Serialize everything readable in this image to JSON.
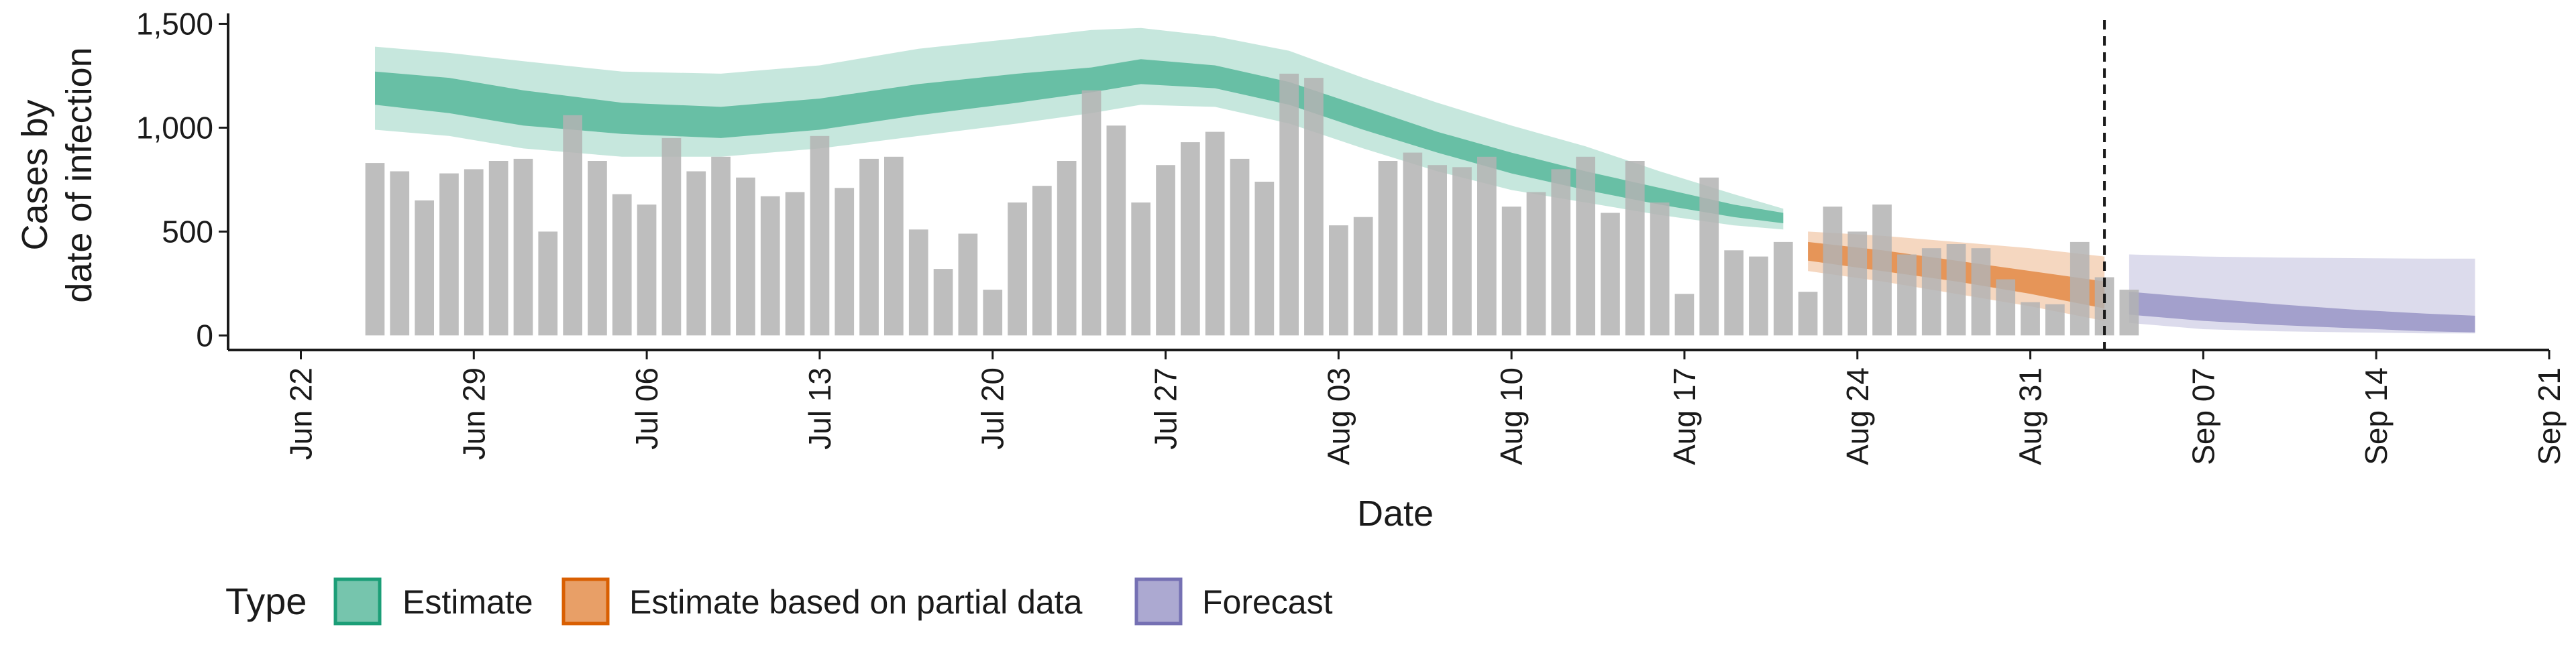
{
  "chart_data": {
    "type": "bar",
    "xlabel": "Date",
    "ylabel_lines": [
      "Cases by",
      "date of infection"
    ],
    "y_ticks": [
      0,
      500,
      1000,
      1500
    ],
    "y_tick_labels": [
      "0",
      "500",
      "1,000",
      "1,500"
    ],
    "ylim": [
      -70,
      1550
    ],
    "x_range": [
      "2020-06-19",
      "2020-09-21"
    ],
    "x_ticks": [
      "2020-06-22",
      "2020-06-29",
      "2020-07-06",
      "2020-07-13",
      "2020-07-20",
      "2020-07-27",
      "2020-08-03",
      "2020-08-10",
      "2020-08-17",
      "2020-08-24",
      "2020-08-31",
      "2020-09-07",
      "2020-09-14",
      "2020-09-21"
    ],
    "x_tick_labels": [
      "Jun 22",
      "Jun 29",
      "Jul 06",
      "Jul 13",
      "Jul 20",
      "Jul 27",
      "Aug 03",
      "Aug 10",
      "Aug 17",
      "Aug 24",
      "Aug 31",
      "Sep 07",
      "Sep 14",
      "Sep 21"
    ],
    "grid": false,
    "vline_date": "2020-09-03",
    "bars": {
      "color": "#b3b3b3",
      "start_date": "2020-06-25",
      "values": [
        830,
        790,
        650,
        780,
        800,
        840,
        850,
        500,
        1060,
        840,
        680,
        630,
        950,
        790,
        860,
        760,
        670,
        690,
        960,
        710,
        850,
        860,
        510,
        320,
        490,
        220,
        640,
        720,
        840,
        1180,
        1010,
        640,
        820,
        930,
        980,
        850,
        740,
        1260,
        1240,
        530,
        570,
        840,
        880,
        820,
        810,
        860,
        620,
        690,
        800,
        860,
        590,
        840,
        640,
        200,
        760,
        410,
        380,
        450,
        210,
        620,
        500,
        630,
        390,
        420,
        440,
        420,
        270,
        160,
        150,
        450,
        280,
        220
      ]
    },
    "series": [
      {
        "name": "Estimate",
        "color": "#1b9e77",
        "dates": [
          "2020-06-25",
          "2020-06-28",
          "2020-07-01",
          "2020-07-05",
          "2020-07-09",
          "2020-07-13",
          "2020-07-17",
          "2020-07-21",
          "2020-07-24",
          "2020-07-26",
          "2020-07-29",
          "2020-08-01",
          "2020-08-04",
          "2020-08-07",
          "2020-08-10",
          "2020-08-13",
          "2020-08-16",
          "2020-08-19",
          "2020-08-21"
        ],
        "outer_low": [
          990,
          960,
          900,
          860,
          860,
          900,
          960,
          1020,
          1070,
          1110,
          1100,
          1020,
          900,
          790,
          700,
          640,
          580,
          530,
          510
        ],
        "outer_high": [
          1390,
          1360,
          1320,
          1270,
          1260,
          1300,
          1380,
          1430,
          1470,
          1480,
          1440,
          1370,
          1240,
          1120,
          1010,
          910,
          790,
          680,
          610
        ],
        "inner_low": [
          1110,
          1070,
          1010,
          970,
          950,
          990,
          1060,
          1120,
          1170,
          1210,
          1190,
          1110,
          990,
          880,
          780,
          700,
          630,
          570,
          540
        ],
        "inner_high": [
          1270,
          1240,
          1180,
          1120,
          1100,
          1140,
          1210,
          1260,
          1290,
          1330,
          1300,
          1220,
          1100,
          980,
          880,
          790,
          710,
          630,
          590
        ]
      },
      {
        "name": "Estimate based on partial data",
        "color": "#d95f02",
        "dates": [
          "2020-08-22",
          "2020-08-25",
          "2020-08-28",
          "2020-08-31",
          "2020-09-03"
        ],
        "outer_low": [
          310,
          260,
          200,
          140,
          70
        ],
        "outer_high": [
          500,
          480,
          450,
          420,
          380
        ],
        "inner_low": [
          360,
          310,
          260,
          200,
          130
        ],
        "inner_high": [
          450,
          410,
          360,
          310,
          260
        ]
      },
      {
        "name": "Forecast",
        "color": "#7570b3",
        "dates": [
          "2020-09-04",
          "2020-09-07",
          "2020-09-10",
          "2020-09-13",
          "2020-09-16",
          "2020-09-18"
        ],
        "outer_low": [
          60,
          30,
          20,
          15,
          10,
          10
        ],
        "outer_high": [
          390,
          380,
          375,
          372,
          370,
          370
        ],
        "inner_low": [
          100,
          70,
          50,
          35,
          20,
          15
        ],
        "inner_high": [
          210,
          180,
          150,
          125,
          105,
          95
        ]
      }
    ],
    "legend": {
      "title": "Type",
      "placement": "bottom-left",
      "items": [
        "Estimate",
        "Estimate based on partial data",
        "Forecast"
      ]
    }
  }
}
